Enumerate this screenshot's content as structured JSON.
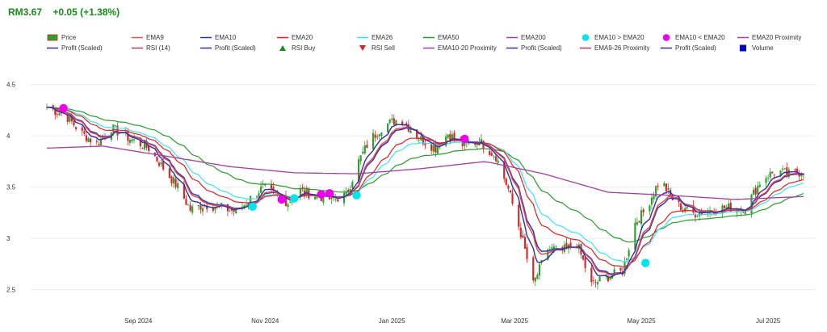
{
  "header": {
    "price": "RM3.67",
    "change": "+0.05 (+1.38%)",
    "change_color": "#1a8a1a"
  },
  "legend": {
    "rows": [
      [
        {
          "label": "Price",
          "kind": "candle",
          "color": "#2ca02c"
        },
        {
          "label": "EMA9",
          "kind": "line",
          "color": "#e05050"
        },
        {
          "label": "EMA10",
          "kind": "line",
          "color": "#3030c0"
        },
        {
          "label": "EMA20",
          "kind": "line",
          "color": "#e02020"
        },
        {
          "label": "EMA26",
          "kind": "line",
          "color": "#40e0f0"
        },
        {
          "label": "EMA50",
          "kind": "line",
          "color": "#2a9a2a"
        },
        {
          "label": "EMA200",
          "kind": "line",
          "color": "#a040a0"
        },
        {
          "label": "EMA10 > EMA20",
          "kind": "dot",
          "color": "#00e5ee"
        },
        {
          "label": "EMA10 < EMA20",
          "kind": "dot",
          "color": "#ee00ee"
        },
        {
          "label": "EMA20 Proximity",
          "kind": "line",
          "color": "#a040a0"
        }
      ],
      [
        {
          "label": "Profit (Scaled)",
          "kind": "line",
          "color": "#3030a0"
        },
        {
          "label": "RSI (14)",
          "kind": "line",
          "color": "#a04060"
        },
        {
          "label": "Profit (Scaled)",
          "kind": "line",
          "color": "#3030a0"
        },
        {
          "label": "RSI Buy",
          "kind": "tri-up",
          "color": "#1a8a1a"
        },
        {
          "label": "RSI Sell",
          "kind": "tri-down",
          "color": "#e02020"
        },
        {
          "label": "EMA10-20 Proximity",
          "kind": "line",
          "color": "#a040a0"
        },
        {
          "label": "Profit (Scaled)",
          "kind": "line",
          "color": "#3030a0"
        },
        {
          "label": "EMA9-26 Proximity",
          "kind": "line",
          "color": "#a04060"
        },
        {
          "label": "Profit (Scaled)",
          "kind": "line",
          "color": "#3030a0"
        },
        {
          "label": "Volume",
          "kind": "square",
          "color": "#0000cc"
        }
      ]
    ]
  },
  "chart_data": {
    "type": "line",
    "title": "",
    "xlabel": "",
    "ylabel": "",
    "ylim": [
      2.3,
      4.6
    ],
    "grid": true,
    "legend_position": "top",
    "y_ticks": [
      2.5,
      3,
      3.5,
      4,
      4.5
    ],
    "y_tick_labels": [
      "2.5",
      "3",
      "3.5",
      "4",
      "4.5"
    ],
    "x_ticks": [
      {
        "label": "Sep 2024",
        "date": "2024-09-01"
      },
      {
        "label": "Nov 2024",
        "date": "2024-11-01"
      },
      {
        "label": "Jan 2025",
        "date": "2025-01-01"
      },
      {
        "label": "Mar 2025",
        "date": "2025-03-01"
      },
      {
        "label": "May 2025",
        "date": "2025-05-01"
      },
      {
        "label": "Jul 2025",
        "date": "2025-07-01"
      }
    ],
    "x_range": [
      "2024-07-19",
      "2025-07-20"
    ],
    "price_anchors": [
      [
        "2024-07-19",
        4.28
      ],
      [
        "2024-07-28",
        4.2
      ],
      [
        "2024-08-05",
        4.02
      ],
      [
        "2024-08-12",
        3.92
      ],
      [
        "2024-08-19",
        4.08
      ],
      [
        "2024-08-28",
        3.97
      ],
      [
        "2024-09-06",
        3.88
      ],
      [
        "2024-09-14",
        3.66
      ],
      [
        "2024-09-20",
        3.5
      ],
      [
        "2024-09-26",
        3.28
      ],
      [
        "2024-10-03",
        3.33
      ],
      [
        "2024-10-11",
        3.3
      ],
      [
        "2024-10-18",
        3.26
      ],
      [
        "2024-10-24",
        3.37
      ],
      [
        "2024-10-31",
        3.5
      ],
      [
        "2024-11-05",
        3.43
      ],
      [
        "2024-11-12",
        3.35
      ],
      [
        "2024-11-18",
        3.47
      ],
      [
        "2024-11-25",
        3.42
      ],
      [
        "2024-12-03",
        3.38
      ],
      [
        "2024-12-10",
        3.42
      ],
      [
        "2024-12-16",
        3.75
      ],
      [
        "2024-12-21",
        3.95
      ],
      [
        "2024-12-28",
        4.1
      ],
      [
        "2025-01-05",
        4.17
      ],
      [
        "2025-01-14",
        3.98
      ],
      [
        "2025-01-22",
        3.88
      ],
      [
        "2025-01-28",
        4.02
      ],
      [
        "2025-02-05",
        3.9
      ],
      [
        "2025-02-12",
        3.95
      ],
      [
        "2025-02-20",
        3.8
      ],
      [
        "2025-02-26",
        3.48
      ],
      [
        "2025-03-04",
        3.05
      ],
      [
        "2025-03-10",
        2.55
      ],
      [
        "2025-03-17",
        2.9
      ],
      [
        "2025-03-24",
        2.88
      ],
      [
        "2025-03-31",
        2.95
      ],
      [
        "2025-04-07",
        2.55
      ],
      [
        "2025-04-14",
        2.62
      ],
      [
        "2025-04-22",
        2.68
      ],
      [
        "2025-04-28",
        3.15
      ],
      [
        "2025-05-03",
        3.28
      ],
      [
        "2025-05-10",
        3.58
      ],
      [
        "2025-05-17",
        3.35
      ],
      [
        "2025-05-25",
        3.24
      ],
      [
        "2025-06-02",
        3.27
      ],
      [
        "2025-06-10",
        3.3
      ],
      [
        "2025-06-20",
        3.3
      ],
      [
        "2025-06-28",
        3.58
      ],
      [
        "2025-07-05",
        3.66
      ],
      [
        "2025-07-12",
        3.62
      ],
      [
        "2025-07-20",
        3.67
      ]
    ],
    "ema200_anchors": [
      [
        "2024-07-19",
        3.88
      ],
      [
        "2024-08-15",
        3.9
      ],
      [
        "2024-09-15",
        3.8
      ],
      [
        "2024-10-15",
        3.7
      ],
      [
        "2024-11-15",
        3.64
      ],
      [
        "2024-12-15",
        3.63
      ],
      [
        "2025-01-15",
        3.68
      ],
      [
        "2025-02-15",
        3.75
      ],
      [
        "2025-03-15",
        3.63
      ],
      [
        "2025-04-15",
        3.45
      ],
      [
        "2025-05-15",
        3.42
      ],
      [
        "2025-06-15",
        3.38
      ],
      [
        "2025-07-20",
        3.41
      ]
    ],
    "crossovers": [
      {
        "date": "2024-07-27",
        "value": 4.27,
        "type": "EMA10 < EMA20"
      },
      {
        "date": "2024-10-26",
        "value": 3.31,
        "type": "EMA10 > EMA20"
      },
      {
        "date": "2024-11-09",
        "value": 3.38,
        "type": "EMA10 < EMA20"
      },
      {
        "date": "2024-11-15",
        "value": 3.39,
        "type": "EMA10 > EMA20"
      },
      {
        "date": "2024-11-28",
        "value": 3.43,
        "type": "EMA10 < EMA20"
      },
      {
        "date": "2024-12-02",
        "value": 3.44,
        "type": "EMA10 < EMA20"
      },
      {
        "date": "2024-12-15",
        "value": 3.42,
        "type": "EMA10 > EMA20"
      },
      {
        "date": "2025-02-05",
        "value": 3.97,
        "type": "EMA10 < EMA20"
      },
      {
        "date": "2025-05-03",
        "value": 2.76,
        "type": "EMA10 > EMA20"
      }
    ],
    "series": [
      {
        "name": "Price",
        "kind": "candlestick",
        "color": "#2ca02c",
        "down_color": "#d62728"
      },
      {
        "name": "EMA9",
        "period": 9,
        "color": "#e05050"
      },
      {
        "name": "EMA10",
        "period": 10,
        "color": "#3030c0"
      },
      {
        "name": "EMA20",
        "period": 20,
        "color": "#e02020"
      },
      {
        "name": "EMA26",
        "period": 26,
        "color": "#40e0f0"
      },
      {
        "name": "EMA50",
        "period": 50,
        "color": "#2a9a2a"
      },
      {
        "name": "EMA200",
        "period": 200,
        "color": "#a040a0"
      },
      {
        "name": "Profit (Scaled)",
        "color": "#3030a0"
      }
    ]
  }
}
